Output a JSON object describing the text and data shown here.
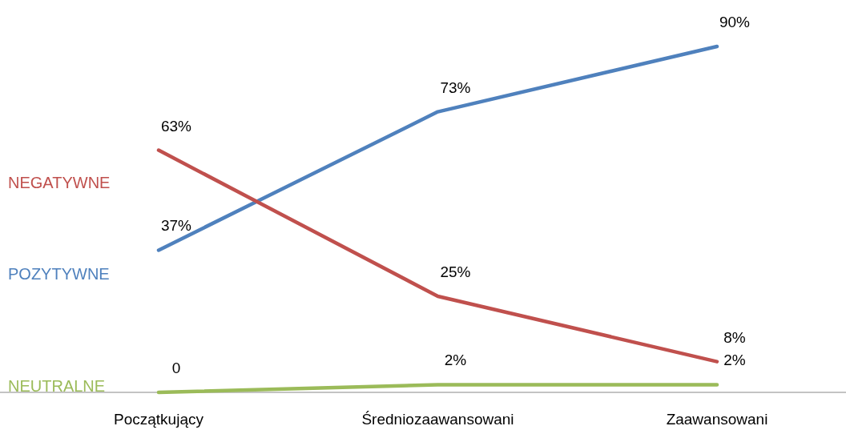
{
  "chart_data": {
    "type": "line",
    "categories": [
      "Początkujący",
      "Średniozaawansowani",
      "Zaawansowani"
    ],
    "series": [
      {
        "name": "POZYTYWNE",
        "color": "#4f81bd",
        "values": [
          37,
          73,
          90
        ],
        "value_labels": [
          "37%",
          "73%",
          "90%"
        ]
      },
      {
        "name": "NEGATYWNE",
        "color": "#c0504d",
        "values": [
          63,
          25,
          8
        ],
        "value_labels": [
          "63%",
          "25%",
          "8%"
        ]
      },
      {
        "name": "NEUTRALNE",
        "color": "#9bbb59",
        "values": [
          0,
          2,
          2
        ],
        "value_labels": [
          "0",
          "2%",
          "2%"
        ]
      }
    ],
    "marker": "none",
    "line_style": "solid"
  }
}
